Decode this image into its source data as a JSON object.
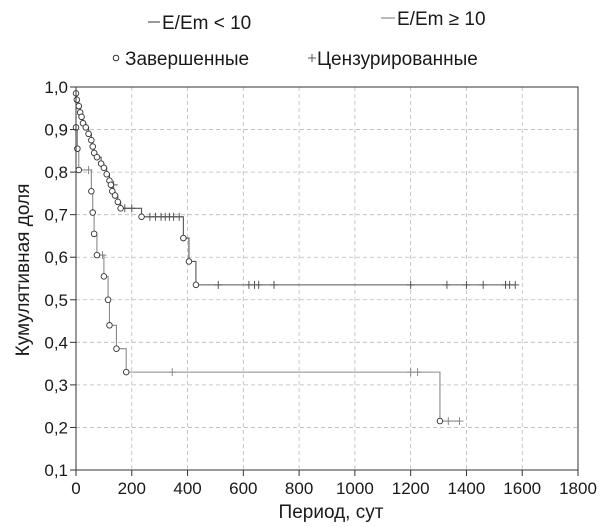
{
  "chart_data": {
    "type": "line",
    "title": "",
    "xlabel": "Период, сут",
    "ylabel": "Кумулятивная доля",
    "xlim": [
      0,
      1800
    ],
    "ylim": [
      0.1,
      1.0
    ],
    "x_ticks": [
      0,
      200,
      400,
      600,
      800,
      1000,
      1200,
      1400,
      1600,
      1800
    ],
    "x_tick_labels": [
      "0",
      "200",
      "400",
      "600",
      "800",
      "1000",
      "1200",
      "1400",
      "1600",
      "1800"
    ],
    "y_ticks": [
      0.1,
      0.2,
      0.3,
      0.4,
      0.5,
      0.6,
      0.7,
      0.8,
      0.9,
      1.0
    ],
    "y_tick_labels": [
      "0,1",
      "0,2",
      "0,3",
      "0,4",
      "0,5",
      "0,6",
      "0,7",
      "0,8",
      "0,9",
      "1,0"
    ],
    "grid": true,
    "legend_position": "top",
    "legend": {
      "series_lt": "E/Em < 10",
      "series_ge": "E/Em ≥ 10",
      "completed": "Завершенные",
      "censored": "Цензурированные"
    },
    "series": [
      {
        "name": "E/Em < 10",
        "color": "#555555",
        "steps": [
          [
            0,
            0.985
          ],
          [
            3,
            0.97
          ],
          [
            10,
            0.955
          ],
          [
            15,
            0.94
          ],
          [
            20,
            0.93
          ],
          [
            25,
            0.915
          ],
          [
            35,
            0.905
          ],
          [
            45,
            0.89
          ],
          [
            55,
            0.875
          ],
          [
            60,
            0.86
          ],
          [
            65,
            0.845
          ],
          [
            75,
            0.835
          ],
          [
            90,
            0.82
          ],
          [
            100,
            0.81
          ],
          [
            110,
            0.795
          ],
          [
            120,
            0.78
          ],
          [
            125,
            0.77
          ],
          [
            130,
            0.755
          ],
          [
            140,
            0.745
          ],
          [
            150,
            0.73
          ],
          [
            160,
            0.715
          ],
          [
            235,
            0.695
          ],
          [
            385,
            0.645
          ],
          [
            405,
            0.59
          ],
          [
            430,
            0.535
          ]
        ],
        "end_x": 1575,
        "events": [
          [
            0,
            0.985
          ],
          [
            3,
            0.97
          ],
          [
            10,
            0.955
          ],
          [
            15,
            0.94
          ],
          [
            20,
            0.93
          ],
          [
            25,
            0.915
          ],
          [
            35,
            0.905
          ],
          [
            45,
            0.89
          ],
          [
            55,
            0.875
          ],
          [
            60,
            0.86
          ],
          [
            65,
            0.845
          ],
          [
            75,
            0.835
          ],
          [
            90,
            0.82
          ],
          [
            100,
            0.81
          ],
          [
            110,
            0.795
          ],
          [
            120,
            0.78
          ],
          [
            125,
            0.77
          ],
          [
            130,
            0.755
          ],
          [
            140,
            0.745
          ],
          [
            150,
            0.73
          ],
          [
            160,
            0.715
          ],
          [
            235,
            0.695
          ],
          [
            385,
            0.645
          ],
          [
            405,
            0.59
          ],
          [
            430,
            0.535
          ]
        ],
        "censored": [
          [
            135,
            0.77
          ],
          [
            175,
            0.715
          ],
          [
            200,
            0.715
          ],
          [
            265,
            0.695
          ],
          [
            285,
            0.695
          ],
          [
            305,
            0.695
          ],
          [
            320,
            0.695
          ],
          [
            335,
            0.695
          ],
          [
            350,
            0.695
          ],
          [
            370,
            0.695
          ],
          [
            510,
            0.535
          ],
          [
            620,
            0.535
          ],
          [
            640,
            0.535
          ],
          [
            655,
            0.535
          ],
          [
            710,
            0.535
          ],
          [
            1200,
            0.535
          ],
          [
            1330,
            0.535
          ],
          [
            1400,
            0.535
          ],
          [
            1460,
            0.535
          ],
          [
            1540,
            0.535
          ],
          [
            1555,
            0.535
          ],
          [
            1575,
            0.535
          ]
        ]
      },
      {
        "name": "E/Em ≥ 10",
        "color": "#8a8a8a",
        "steps": [
          [
            0,
            0.905
          ],
          [
            5,
            0.855
          ],
          [
            10,
            0.805
          ],
          [
            55,
            0.755
          ],
          [
            60,
            0.705
          ],
          [
            65,
            0.655
          ],
          [
            75,
            0.605
          ],
          [
            100,
            0.555
          ],
          [
            115,
            0.5
          ],
          [
            120,
            0.44
          ],
          [
            145,
            0.385
          ],
          [
            180,
            0.33
          ],
          [
            1305,
            0.215
          ]
        ],
        "end_x": 1375,
        "events": [
          [
            0,
            0.905
          ],
          [
            5,
            0.855
          ],
          [
            10,
            0.805
          ],
          [
            55,
            0.755
          ],
          [
            60,
            0.705
          ],
          [
            65,
            0.655
          ],
          [
            75,
            0.605
          ],
          [
            100,
            0.555
          ],
          [
            115,
            0.5
          ],
          [
            120,
            0.44
          ],
          [
            145,
            0.385
          ],
          [
            180,
            0.33
          ],
          [
            1305,
            0.215
          ]
        ],
        "censored": [
          [
            45,
            0.805
          ],
          [
            95,
            0.605
          ],
          [
            345,
            0.33
          ],
          [
            1200,
            0.33
          ],
          [
            1225,
            0.33
          ],
          [
            1335,
            0.215
          ],
          [
            1375,
            0.215
          ]
        ]
      }
    ]
  }
}
